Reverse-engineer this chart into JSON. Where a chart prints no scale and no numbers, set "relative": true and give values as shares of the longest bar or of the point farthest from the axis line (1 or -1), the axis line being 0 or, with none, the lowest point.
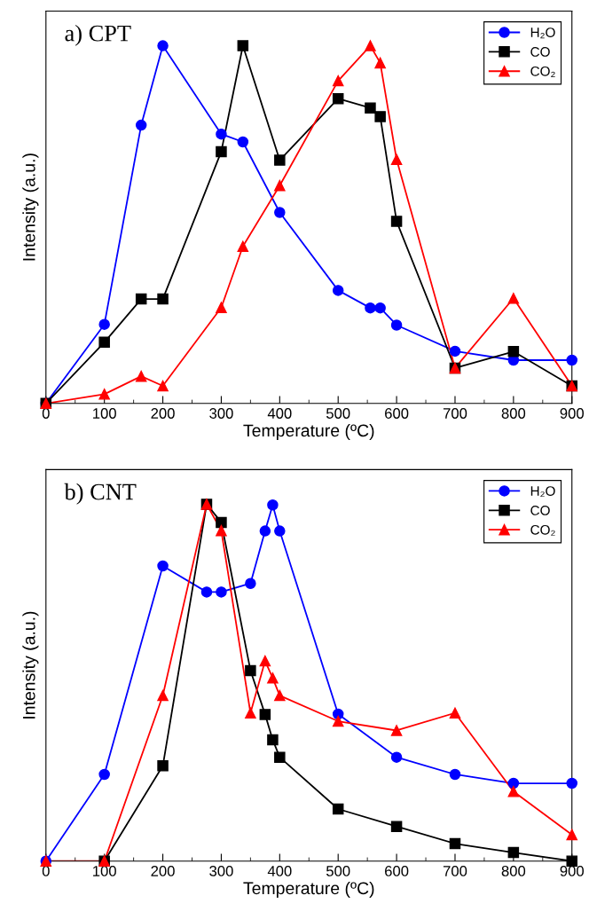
{
  "chart_data": [
    {
      "type": "line",
      "title": "a) CPT",
      "xlabel": "Temperature (ºC)",
      "ylabel": "Intensity (a.u.)",
      "relative": true,
      "xlim": [
        0,
        900
      ],
      "xticks": [
        0,
        100,
        200,
        300,
        400,
        500,
        600,
        700,
        800,
        900
      ],
      "tick_labels": "x",
      "legend": "top right",
      "grid": false,
      "series": [
        {
          "name": "H₂O",
          "color": "#0000ff",
          "marker": "circle",
          "x": [
            0,
            100,
            163,
            200,
            300,
            337,
            400,
            500,
            555,
            572,
            600,
            700,
            800,
            900
          ],
          "values": [
            0,
            0.221,
            0.778,
            1.0,
            0.753,
            0.731,
            0.534,
            0.316,
            0.267,
            0.267,
            0.219,
            0.146,
            0.121,
            0.121
          ]
        },
        {
          "name": "CO",
          "color": "#000000",
          "marker": "square",
          "x": [
            0,
            100,
            163,
            200,
            300,
            337,
            400,
            500,
            555,
            572,
            600,
            700,
            800,
            900
          ],
          "values": [
            0,
            0.171,
            0.292,
            0.292,
            0.704,
            1.0,
            0.68,
            0.852,
            0.826,
            0.802,
            0.509,
            0.099,
            0.145,
            0.049
          ]
        },
        {
          "name": "CO₂",
          "color": "#ff0000",
          "marker": "triangle",
          "x": [
            0,
            100,
            163,
            200,
            300,
            337,
            400,
            500,
            555,
            572,
            600,
            700,
            800,
            900
          ],
          "values": [
            0,
            0.026,
            0.076,
            0.049,
            0.268,
            0.439,
            0.609,
            0.902,
            1.0,
            0.952,
            0.682,
            0.099,
            0.294,
            0.049
          ]
        }
      ]
    },
    {
      "type": "line",
      "title": "b) CNT",
      "xlabel": "Temperature (ºC)",
      "ylabel": "Intensity (a.u.)",
      "relative": true,
      "xlim": [
        0,
        900
      ],
      "xticks": [
        0,
        100,
        200,
        300,
        400,
        500,
        600,
        700,
        800,
        900
      ],
      "tick_labels": "x",
      "legend": "top right",
      "grid": false,
      "series": [
        {
          "name": "H₂O",
          "color": "#0000ff",
          "marker": "circle",
          "x": [
            0,
            100,
            200,
            275,
            300,
            350,
            375,
            388,
            400,
            500,
            600,
            700,
            800,
            900
          ],
          "values": [
            0,
            0.243,
            0.827,
            0.754,
            0.754,
            0.778,
            0.925,
            0.998,
            0.925,
            0.412,
            0.291,
            0.243,
            0.218,
            0.218
          ]
        },
        {
          "name": "CO",
          "color": "#000000",
          "marker": "square",
          "x": [
            100,
            200,
            275,
            300,
            350,
            375,
            388,
            400,
            500,
            600,
            700,
            800,
            900
          ],
          "values": [
            0,
            0.267,
            1.0,
            0.949,
            0.534,
            0.411,
            0.34,
            0.291,
            0.146,
            0.097,
            0.049,
            0.024,
            0
          ]
        },
        {
          "name": "CO₂",
          "color": "#ff0000",
          "marker": "triangle",
          "x": [
            0,
            100,
            200,
            275,
            300,
            350,
            375,
            388,
            400,
            500,
            600,
            700,
            800,
            900
          ],
          "values": [
            0,
            0,
            0.464,
            1.0,
            0.926,
            0.415,
            0.561,
            0.513,
            0.464,
            0.392,
            0.366,
            0.415,
            0.195,
            0.074
          ]
        }
      ]
    }
  ]
}
